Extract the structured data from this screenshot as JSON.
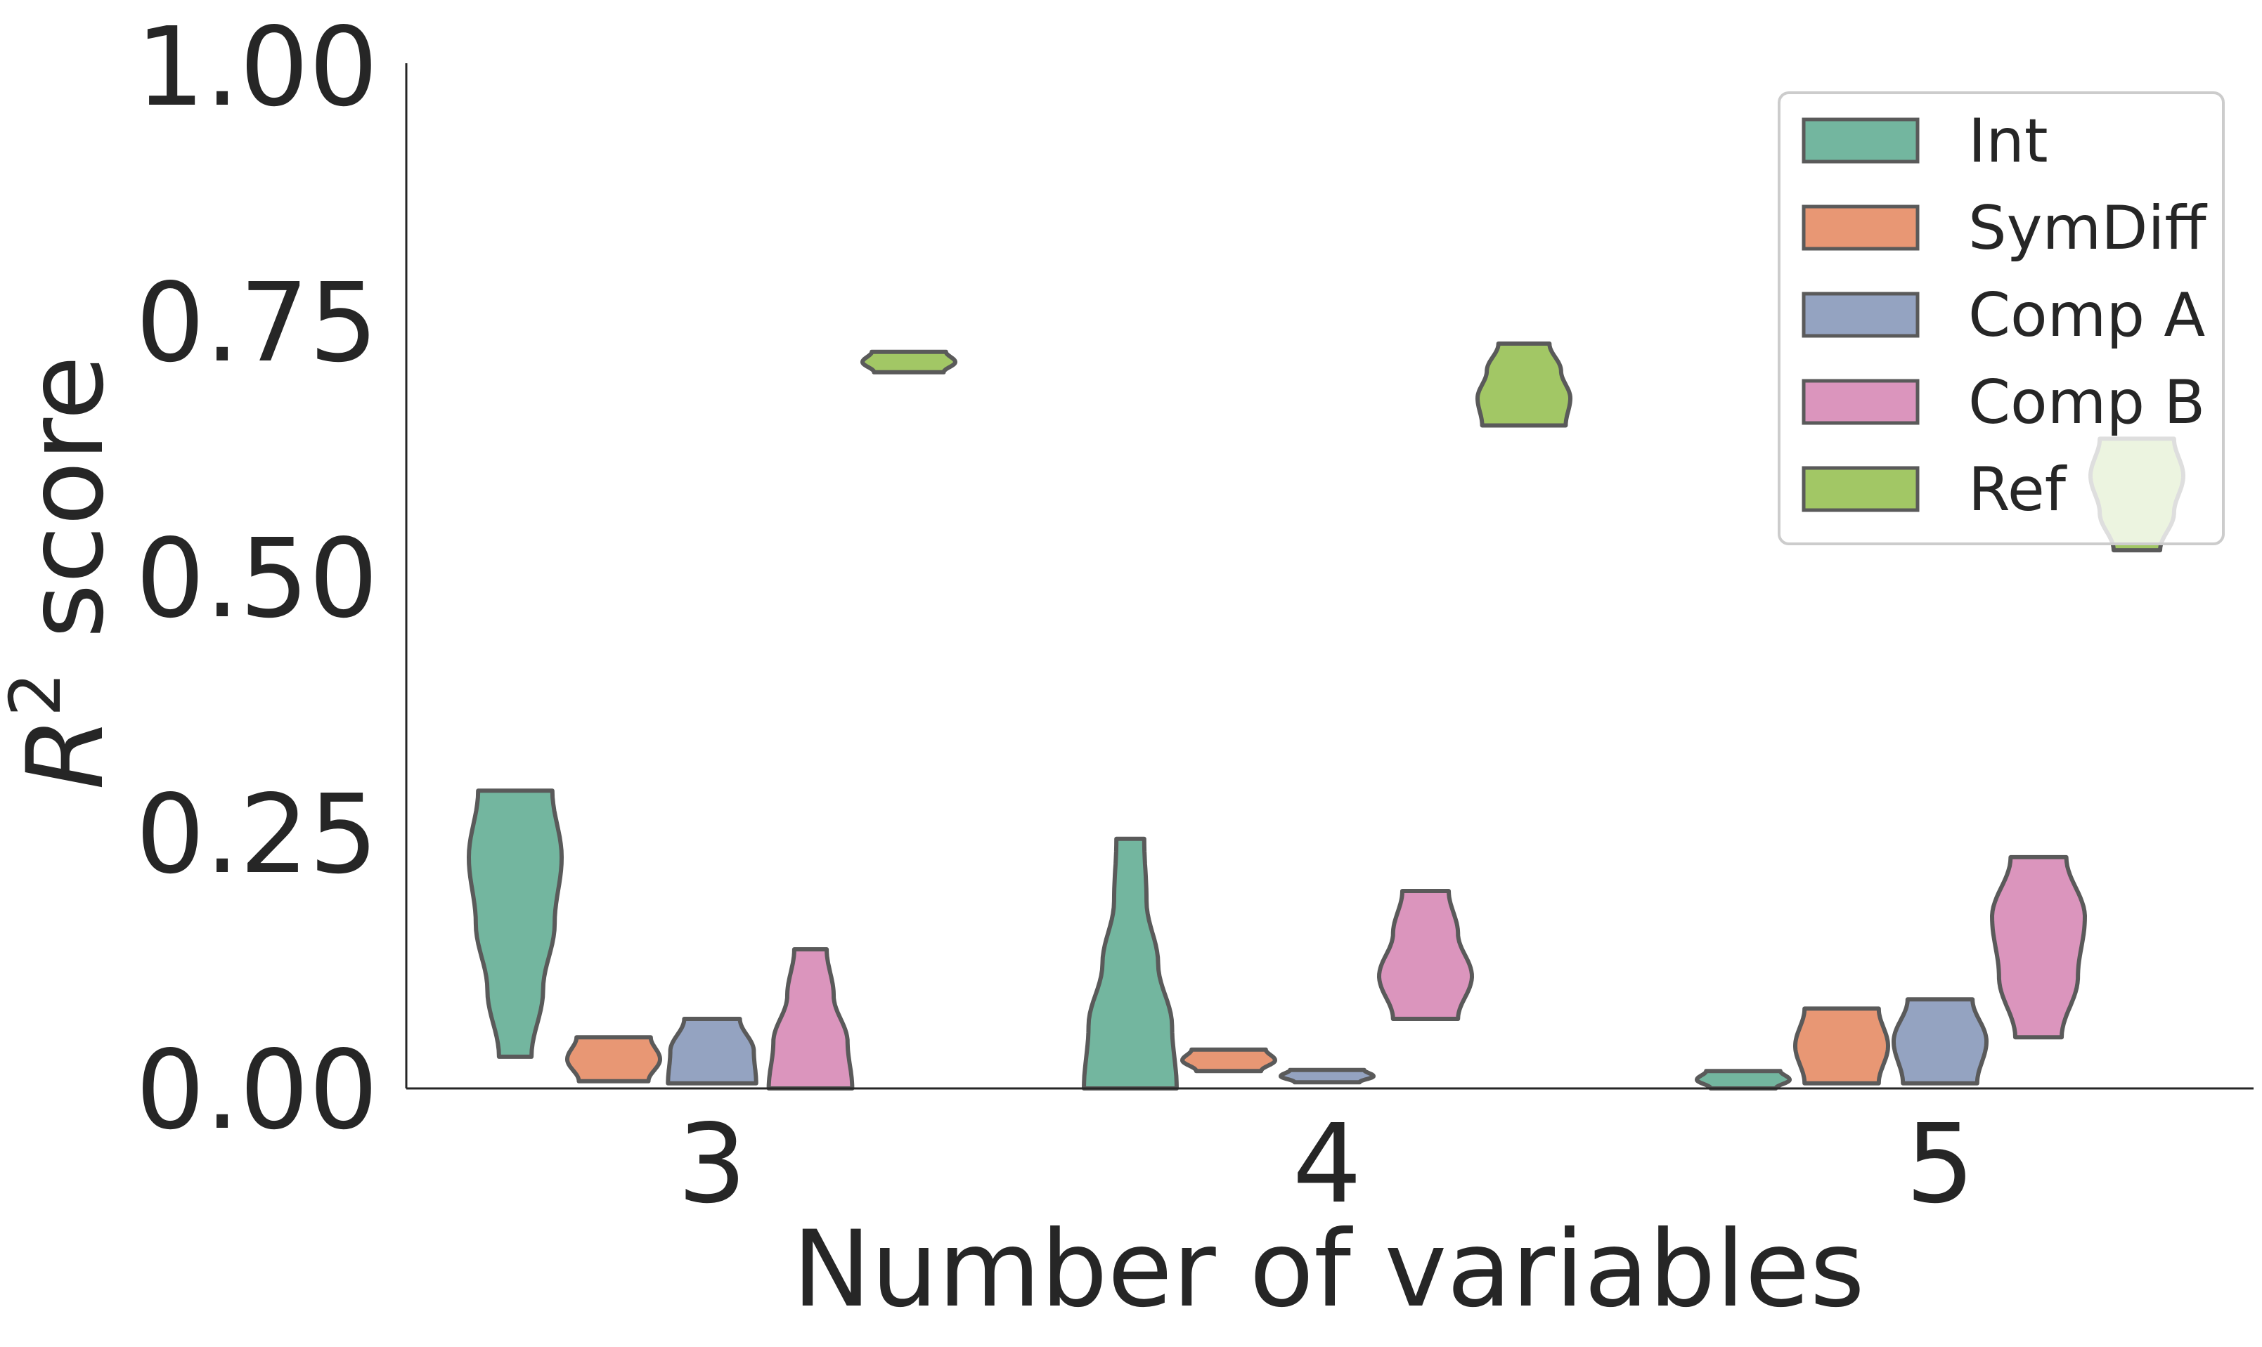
{
  "chart_data": {
    "type": "violin",
    "title": "",
    "xlabel": "Number of variables",
    "ylabel_main": "R",
    "ylabel_sup": "2",
    "ylabel_rest": " score",
    "ylim": [
      0,
      1.0
    ],
    "yticks": [
      "0.00",
      "0.25",
      "0.50",
      "0.75",
      "1.00"
    ],
    "ytick_values": [
      0,
      0.25,
      0.5,
      0.75,
      1.0
    ],
    "categories": [
      "3",
      "4",
      "5"
    ],
    "grid": false,
    "legend_position": "top-right",
    "series": [
      {
        "name": "Int",
        "color": "#73b69f",
        "ranges": [
          [
            0.031,
            0.291
          ],
          [
            0.0,
            0.244
          ],
          [
            0.0,
            0.017
          ]
        ],
        "profiles": [
          [
            0.35,
            0.6,
            0.85,
            1,
            0.8
          ],
          [
            1,
            0.9,
            0.6,
            0.35,
            0.3
          ],
          [
            0.7,
            1,
            0.8
          ]
        ]
      },
      {
        "name": "SymDiff",
        "color": "#e89774",
        "ranges": [
          [
            0.007,
            0.05
          ],
          [
            0.017,
            0.038
          ],
          [
            0.005,
            0.078
          ]
        ],
        "profiles": [
          [
            0.75,
            1,
            0.8
          ],
          [
            0.7,
            1,
            0.8
          ],
          [
            0.8,
            1,
            0.8
          ]
        ]
      },
      {
        "name": "Comp A",
        "color": "#94a3c1",
        "ranges": [
          [
            0.005,
            0.068
          ],
          [
            0.006,
            0.018
          ],
          [
            0.005,
            0.087
          ]
        ],
        "profiles": [
          [
            0.95,
            0.9,
            0.6
          ],
          [
            0.7,
            1,
            0.8
          ],
          [
            0.8,
            1,
            0.7
          ]
        ]
      },
      {
        "name": "Comp B",
        "color": "#db95bd",
        "ranges": [
          [
            0.0,
            0.136
          ],
          [
            0.068,
            0.193
          ],
          [
            0.05,
            0.226
          ]
        ],
        "profiles": [
          [
            0.9,
            0.8,
            0.5,
            0.35
          ],
          [
            0.7,
            1,
            0.7,
            0.5
          ],
          [
            0.5,
            0.85,
            1,
            0.6
          ]
        ]
      },
      {
        "name": "Ref",
        "color": "#a2c765",
        "ranges": [
          [
            0.7,
            0.72
          ],
          [
            0.648,
            0.728
          ],
          [
            0.526,
            0.635
          ]
        ],
        "profiles": [
          [
            0.75,
            1,
            0.8
          ],
          [
            0.9,
            1,
            0.8,
            0.55
          ],
          [
            0.5,
            0.8,
            1,
            0.8
          ]
        ]
      }
    ],
    "outline_color": "#5a5a5a"
  }
}
